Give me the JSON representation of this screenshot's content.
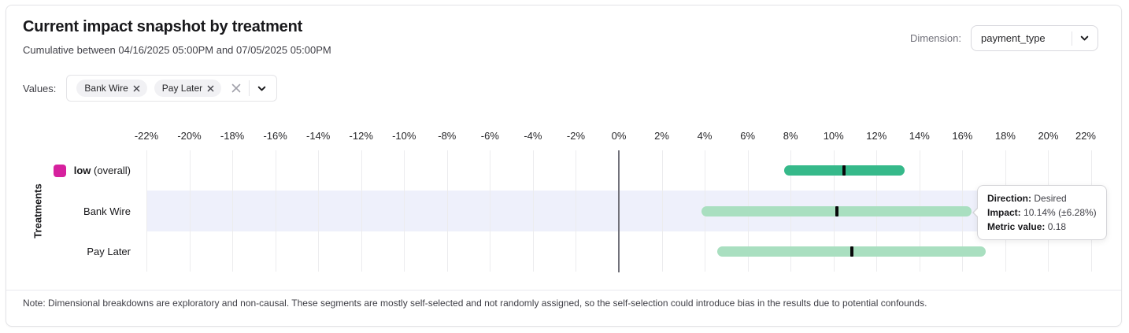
{
  "header": {
    "title": "Current impact snapshot by treatment",
    "subtitle": "Cumulative between 04/16/2025 05:00PM and 07/05/2025 05:00PM",
    "dimension_label": "Dimension:",
    "dimension_value": "payment_type"
  },
  "filters": {
    "label": "Values:",
    "chips": [
      {
        "label": "Bank Wire"
      },
      {
        "label": "Pay Later"
      }
    ]
  },
  "chart_data": {
    "type": "range_bar",
    "title": "Current impact snapshot by treatment",
    "xlabel": "",
    "ylabel": "Treatments",
    "x_unit": "%",
    "xlim": [
      -22,
      22
    ],
    "grid": true,
    "x_tick_values": [
      -22,
      -20,
      -18,
      -16,
      -14,
      -12,
      -10,
      -8,
      -6,
      -4,
      -2,
      0,
      2,
      4,
      6,
      8,
      10,
      12,
      14,
      16,
      18,
      20,
      22
    ],
    "x_tick_labels": [
      "-22%",
      "-20%",
      "-18%",
      "-16%",
      "-14%",
      "-12%",
      "-10%",
      "-8%",
      "-6%",
      "-4%",
      "-2%",
      "0%",
      "2%",
      "4%",
      "6%",
      "8%",
      "10%",
      "12%",
      "14%",
      "16%",
      "18%",
      "20%",
      "22%"
    ],
    "rows": [
      {
        "name": "low",
        "name_note": "(overall)",
        "swatch_color": "#d6219e",
        "impact_low": 7.7,
        "impact_high": 13.3,
        "impact_center": 10.5,
        "bar_color": "#36b98a",
        "highlighted": false
      },
      {
        "name": "Bank Wire",
        "impact_low": 3.86,
        "impact_high": 16.42,
        "impact_center": 10.14,
        "bar_color": "#a9dfc0",
        "highlighted": true
      },
      {
        "name": "Pay Later",
        "impact_low": 4.6,
        "impact_high": 17.1,
        "impact_center": 10.85,
        "bar_color": "#a9dfc0",
        "highlighted": false
      }
    ],
    "colors": {
      "overall_bar": "#36b98a",
      "segment_bar": "#a9dfc0",
      "center_marker": "#09090b",
      "highlight_band": "#eef0fb",
      "legend_swatch": "#d6219e",
      "zero_line": "#71717a",
      "gridline": "#ececee"
    }
  },
  "tooltip": {
    "rows": [
      {
        "label": "Direction:",
        "value": "Desired"
      },
      {
        "label": "Impact:",
        "value": "10.14% (±6.28%)"
      },
      {
        "label": "Metric value:",
        "value": "0.18"
      }
    ]
  },
  "note": "Note: Dimensional breakdowns are exploratory and non-causal. These segments are mostly self-selected and not randomly assigned, so the self-selection could introduce bias in the results due to potential confounds."
}
